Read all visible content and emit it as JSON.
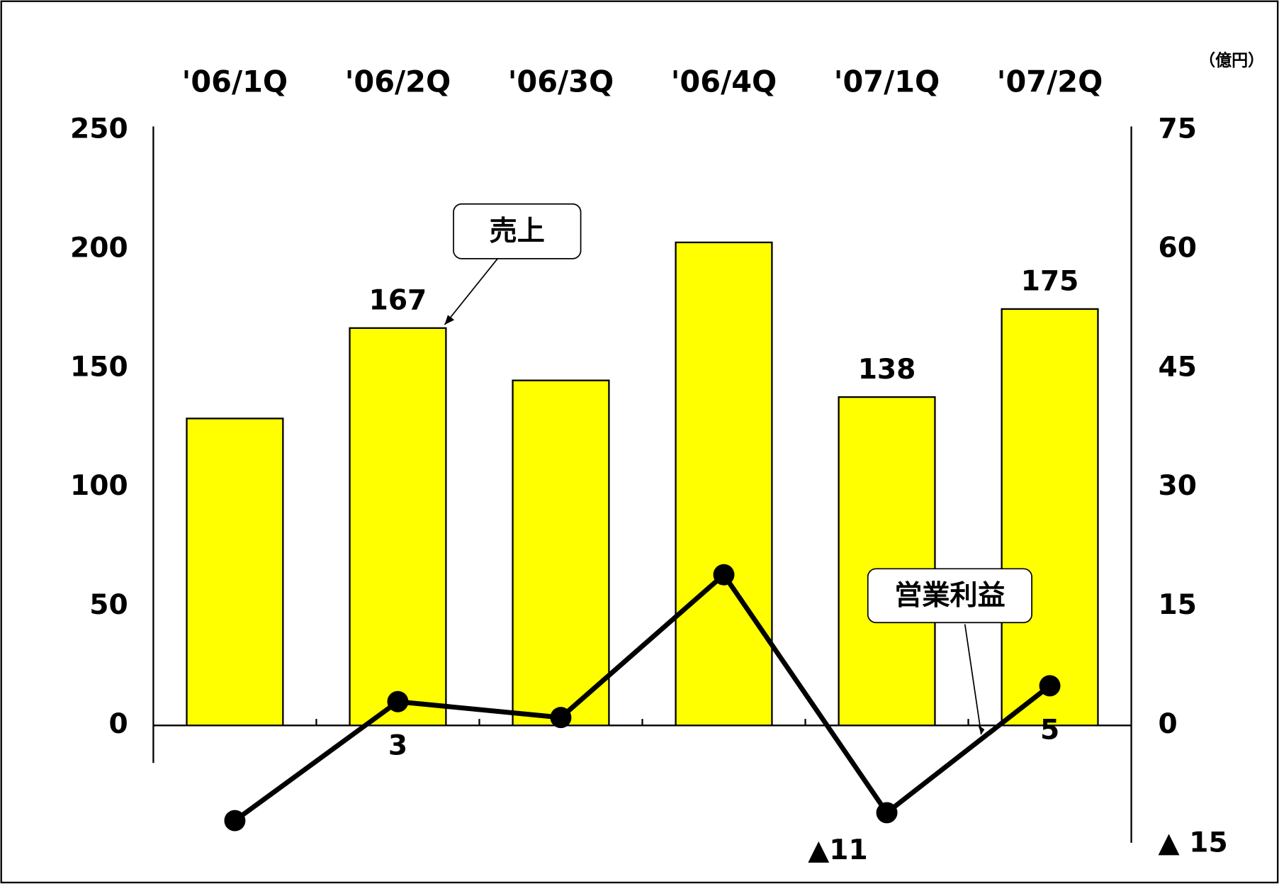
{
  "chart_data": {
    "type": "bar",
    "unit": "（億円）",
    "categories": [
      "'06/1Q",
      "'06/2Q",
      "'06/3Q",
      "'06/4Q",
      "'07/1Q",
      "'07/2Q"
    ],
    "series": [
      {
        "name": "売上",
        "type": "bar",
        "color": "#ffff00",
        "values": [
          129,
          167,
          145,
          203,
          138,
          175
        ],
        "value_labels": [
          null,
          "167",
          null,
          null,
          "138",
          "175"
        ]
      },
      {
        "name": "営業利益",
        "type": "line",
        "axis": "y2",
        "color": "#000000",
        "values": [
          -12,
          3,
          1,
          19,
          -11,
          5
        ],
        "value_labels": [
          null,
          "3",
          null,
          null,
          "▲11",
          "5"
        ]
      }
    ],
    "ylim": [
      -50,
      250
    ],
    "yticks": [
      0,
      50,
      100,
      150,
      200,
      250
    ],
    "y2lim": [
      -15,
      75
    ],
    "y2ticks": [
      {
        "value": -15,
        "label": "▲ 15"
      },
      0,
      15,
      30,
      45,
      60,
      75
    ]
  }
}
